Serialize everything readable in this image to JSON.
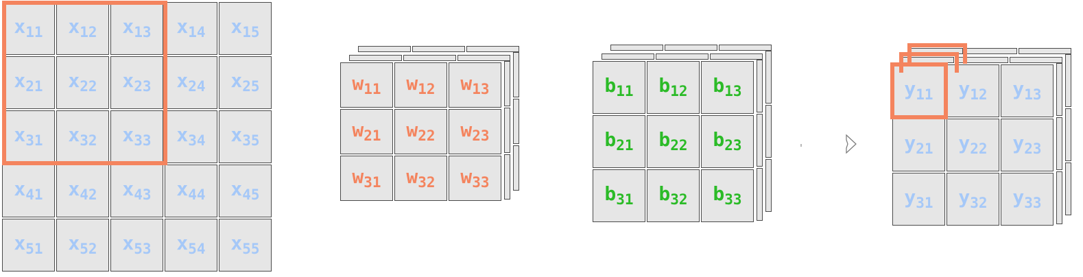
{
  "colors": {
    "x": "#a5c8f8",
    "w": "#f4845e",
    "b": "#2bbb27",
    "y": "#a5c8f8",
    "highlight": "#f4845e",
    "cell_bg": "#e6e6e6",
    "cell_border": "#4a4a4a"
  },
  "matrices": {
    "x": {
      "rows": [
        [
          {
            "base": "x",
            "sub": "11"
          },
          {
            "base": "x",
            "sub": "12"
          },
          {
            "base": "x",
            "sub": "13"
          },
          {
            "base": "x",
            "sub": "14"
          },
          {
            "base": "x",
            "sub": "15"
          }
        ],
        [
          {
            "base": "x",
            "sub": "21"
          },
          {
            "base": "x",
            "sub": "22"
          },
          {
            "base": "x",
            "sub": "23"
          },
          {
            "base": "x",
            "sub": "24"
          },
          {
            "base": "x",
            "sub": "25"
          }
        ],
        [
          {
            "base": "x",
            "sub": "31"
          },
          {
            "base": "x",
            "sub": "32"
          },
          {
            "base": "x",
            "sub": "33"
          },
          {
            "base": "x",
            "sub": "34"
          },
          {
            "base": "x",
            "sub": "35"
          }
        ],
        [
          {
            "base": "x",
            "sub": "41"
          },
          {
            "base": "x",
            "sub": "42"
          },
          {
            "base": "x",
            "sub": "43"
          },
          {
            "base": "x",
            "sub": "44"
          },
          {
            "base": "x",
            "sub": "45"
          }
        ],
        [
          {
            "base": "x",
            "sub": "51"
          },
          {
            "base": "x",
            "sub": "52"
          },
          {
            "base": "x",
            "sub": "53"
          },
          {
            "base": "x",
            "sub": "54"
          },
          {
            "base": "x",
            "sub": "55"
          }
        ]
      ]
    },
    "w": {
      "rows": [
        [
          {
            "base": "w",
            "sub": "11"
          },
          {
            "base": "w",
            "sub": "12"
          },
          {
            "base": "w",
            "sub": "13"
          }
        ],
        [
          {
            "base": "w",
            "sub": "21"
          },
          {
            "base": "w",
            "sub": "22"
          },
          {
            "base": "w",
            "sub": "23"
          }
        ],
        [
          {
            "base": "w",
            "sub": "31"
          },
          {
            "base": "w",
            "sub": "32"
          },
          {
            "base": "w",
            "sub": "33"
          }
        ]
      ]
    },
    "b": {
      "rows": [
        [
          {
            "base": "b",
            "sub": "11"
          },
          {
            "base": "b",
            "sub": "12"
          },
          {
            "base": "b",
            "sub": "13"
          }
        ],
        [
          {
            "base": "b",
            "sub": "21"
          },
          {
            "base": "b",
            "sub": "22"
          },
          {
            "base": "b",
            "sub": "23"
          }
        ],
        [
          {
            "base": "b",
            "sub": "31"
          },
          {
            "base": "b",
            "sub": "32"
          },
          {
            "base": "b",
            "sub": "33"
          }
        ]
      ]
    },
    "y": {
      "rows": [
        [
          {
            "base": "y",
            "sub": "11"
          },
          {
            "base": "y",
            "sub": "12"
          },
          {
            "base": "y",
            "sub": "13"
          }
        ],
        [
          {
            "base": "y",
            "sub": "21"
          },
          {
            "base": "y",
            "sub": "22"
          },
          {
            "base": "y",
            "sub": "23"
          }
        ],
        [
          {
            "base": "y",
            "sub": "31"
          },
          {
            "base": "y",
            "sub": "32"
          },
          {
            "base": "y",
            "sub": "33"
          }
        ]
      ]
    }
  },
  "icons": {
    "arrow": "arrow-right-icon"
  }
}
